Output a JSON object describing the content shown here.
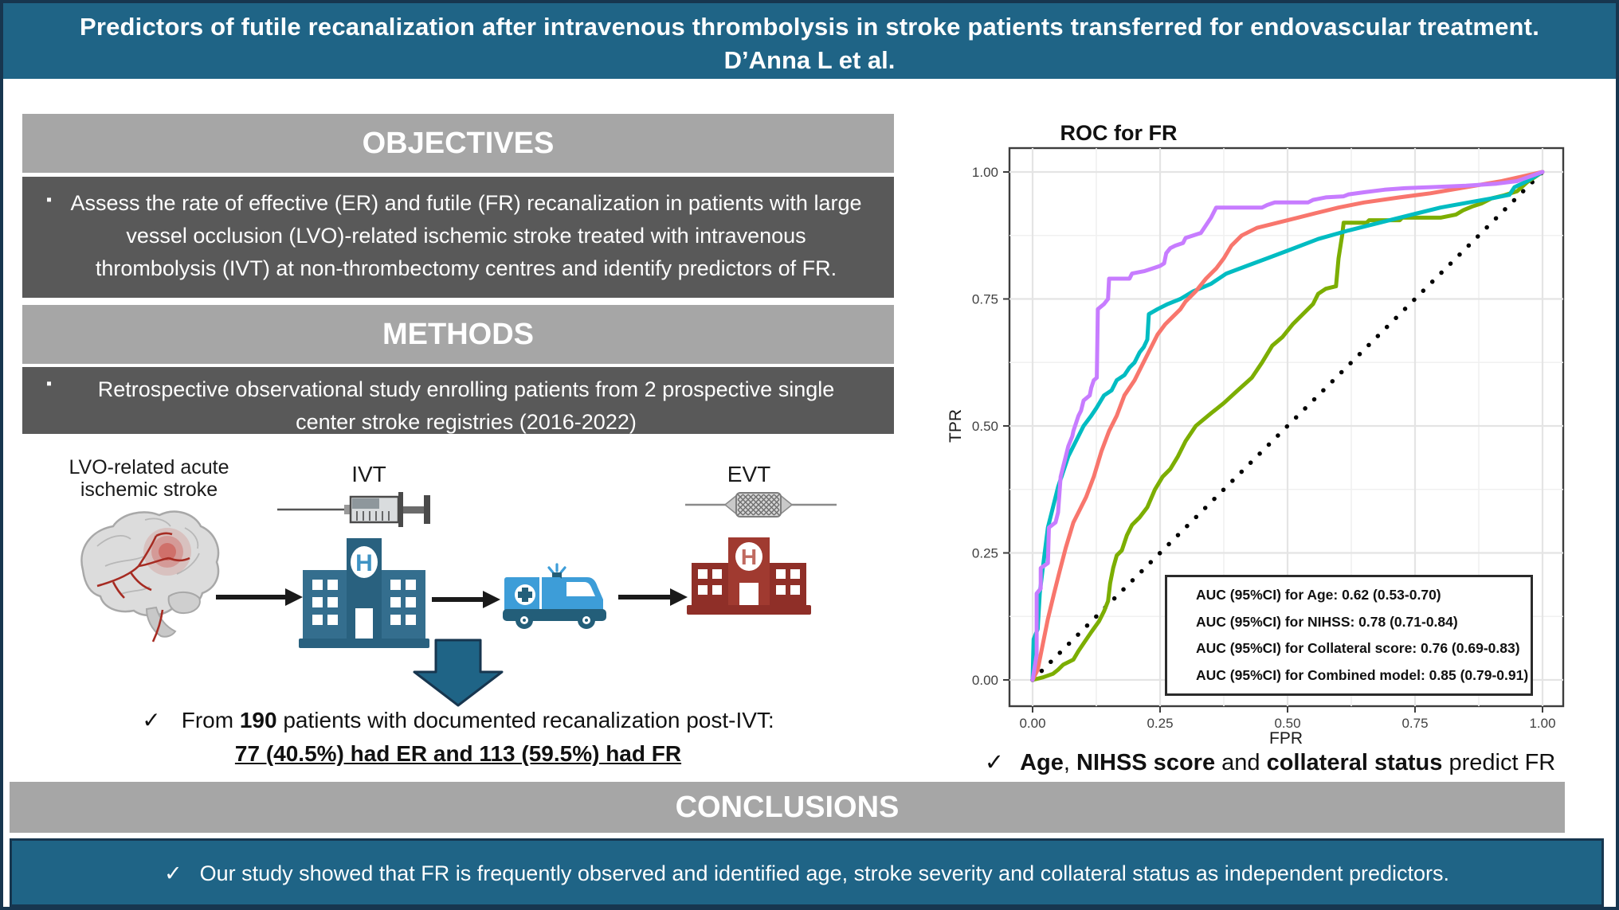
{
  "title": {
    "line1": "Predictors of futile recanalization after intravenous thrombolysis in stroke patients transferred for endovascular treatment.",
    "line2": "D’Anna L et al."
  },
  "objectives": {
    "header": "OBJECTIVES",
    "bullet": "▪",
    "text": "Assess the rate of effective (ER) and futile (FR) recanalization in patients with large vessel occlusion (LVO)-related ischemic stroke treated with intravenous thrombolysis (IVT) at non-thrombectomy centres and identify predictors of FR."
  },
  "methods": {
    "header": "METHODS",
    "bullet": "▪",
    "text": "Retrospective observational study enrolling patients from 2 prospective single center stroke registries (2016-2022)"
  },
  "flow": {
    "brain_label_line1": "LVO-related acute",
    "brain_label_line2": "ischemic stroke",
    "ivt_label": "IVT",
    "evt_label": "EVT",
    "hospital_letter": "H"
  },
  "results": {
    "check": "✓",
    "line1_pre": "From ",
    "line1_bold": "190",
    "line1_post": " patients with documented recanalization post-IVT:",
    "line2": "77 (40.5%) had ER and 113 (59.5%) had FR"
  },
  "finding": {
    "check": "✓",
    "bold1": "Age",
    "sep1": ", ",
    "bold2": "NIHSS score",
    "sep2": " and ",
    "bold3": "collateral status",
    "tail": " predict FR"
  },
  "conclusions": {
    "header": "CONCLUSIONS",
    "check": "✓",
    "text": "Our study showed that FR is frequently observed and identified age, stroke severity and collateral status as independent predictors."
  },
  "colors": {
    "navy_border": "#17364F",
    "teal_bar": "#1F6486",
    "header_gray": "#A6A6A6",
    "body_gray": "#595959",
    "age_green": "#7CAE00",
    "nihss_teal": "#00BCC2",
    "collateral_red": "#F8766D",
    "combined_purple": "#C77CFF"
  },
  "chart_data": {
    "type": "line",
    "title": "ROC for FR",
    "xlabel": "FPR",
    "ylabel": "TPR",
    "xlim": [
      0,
      1
    ],
    "ylim": [
      0,
      1
    ],
    "x_tick_labels": [
      "0.00",
      "0.25",
      "0.50",
      "0.75",
      "1.00"
    ],
    "y_tick_labels": [
      "0.00",
      "0.25",
      "0.50",
      "0.75",
      "1.00"
    ],
    "grid": "major and minor gridlines, white panel, gray border",
    "reference_line": {
      "style": "dotted",
      "from": [
        0,
        0
      ],
      "to": [
        1,
        1
      ],
      "color": "#000000"
    },
    "legend_position": "annotation box inside lower right",
    "annotations": [
      "AUC (95%CI) for Age: 0.62 (0.53-0.70)",
      "AUC (95%CI) for NIHSS: 0.78 (0.71-0.84)",
      "AUC (95%CI) for Collateral score: 0.76 (0.69-0.83)",
      "AUC (95%CI) for Combined model: 0.85 (0.79-0.91)"
    ],
    "series": [
      {
        "name": "Age",
        "color": "#7CAE00",
        "auc": "0.62 (0.53-0.70)",
        "points": [
          [
            0,
            0
          ],
          [
            0.02,
            0.005
          ],
          [
            0.04,
            0.012
          ],
          [
            0.05,
            0.02
          ],
          [
            0.06,
            0.03
          ],
          [
            0.08,
            0.04
          ],
          [
            0.09,
            0.057
          ],
          [
            0.1,
            0.072
          ],
          [
            0.115,
            0.094
          ],
          [
            0.13,
            0.115
          ],
          [
            0.14,
            0.135
          ],
          [
            0.148,
            0.155
          ],
          [
            0.152,
            0.19
          ],
          [
            0.158,
            0.22
          ],
          [
            0.165,
            0.245
          ],
          [
            0.175,
            0.255
          ],
          [
            0.185,
            0.285
          ],
          [
            0.195,
            0.305
          ],
          [
            0.21,
            0.32
          ],
          [
            0.225,
            0.34
          ],
          [
            0.24,
            0.375
          ],
          [
            0.255,
            0.4
          ],
          [
            0.27,
            0.415
          ],
          [
            0.285,
            0.44
          ],
          [
            0.3,
            0.47
          ],
          [
            0.32,
            0.5
          ],
          [
            0.35,
            0.525
          ],
          [
            0.375,
            0.545
          ],
          [
            0.4,
            0.568
          ],
          [
            0.43,
            0.595
          ],
          [
            0.45,
            0.625
          ],
          [
            0.47,
            0.658
          ],
          [
            0.49,
            0.675
          ],
          [
            0.51,
            0.7
          ],
          [
            0.53,
            0.72
          ],
          [
            0.55,
            0.74
          ],
          [
            0.56,
            0.76
          ],
          [
            0.575,
            0.77
          ],
          [
            0.595,
            0.775
          ],
          [
            0.6,
            0.83
          ],
          [
            0.607,
            0.875
          ],
          [
            0.61,
            0.9
          ],
          [
            0.655,
            0.9
          ],
          [
            0.66,
            0.905
          ],
          [
            0.72,
            0.905
          ],
          [
            0.725,
            0.91
          ],
          [
            0.8,
            0.91
          ],
          [
            0.83,
            0.916
          ],
          [
            0.845,
            0.925
          ],
          [
            0.862,
            0.932
          ],
          [
            0.88,
            0.938
          ],
          [
            0.9,
            0.948
          ],
          [
            0.925,
            0.954
          ],
          [
            0.95,
            0.962
          ],
          [
            0.97,
            0.98
          ],
          [
            1,
            1
          ]
        ]
      },
      {
        "name": "NIHSS",
        "color": "#00BCC2",
        "auc": "0.78 (0.71-0.84)",
        "points": [
          [
            0,
            0
          ],
          [
            0.002,
            0.08
          ],
          [
            0.01,
            0.1
          ],
          [
            0.014,
            0.17
          ],
          [
            0.02,
            0.22
          ],
          [
            0.03,
            0.3
          ],
          [
            0.04,
            0.34
          ],
          [
            0.05,
            0.38
          ],
          [
            0.06,
            0.41
          ],
          [
            0.07,
            0.44
          ],
          [
            0.08,
            0.46
          ],
          [
            0.09,
            0.48
          ],
          [
            0.1,
            0.5
          ],
          [
            0.115,
            0.52
          ],
          [
            0.125,
            0.535
          ],
          [
            0.14,
            0.56
          ],
          [
            0.155,
            0.57
          ],
          [
            0.165,
            0.59
          ],
          [
            0.18,
            0.6
          ],
          [
            0.19,
            0.615
          ],
          [
            0.2,
            0.625
          ],
          [
            0.21,
            0.645
          ],
          [
            0.218,
            0.655
          ],
          [
            0.225,
            0.67
          ],
          [
            0.228,
            0.72
          ],
          [
            0.245,
            0.73
          ],
          [
            0.265,
            0.74
          ],
          [
            0.29,
            0.75
          ],
          [
            0.315,
            0.765
          ],
          [
            0.35,
            0.78
          ],
          [
            0.38,
            0.8
          ],
          [
            0.42,
            0.815
          ],
          [
            0.46,
            0.83
          ],
          [
            0.5,
            0.845
          ],
          [
            0.56,
            0.868
          ],
          [
            0.62,
            0.885
          ],
          [
            0.68,
            0.9
          ],
          [
            0.74,
            0.915
          ],
          [
            0.8,
            0.93
          ],
          [
            0.855,
            0.94
          ],
          [
            0.9,
            0.948
          ],
          [
            0.935,
            0.955
          ],
          [
            0.945,
            0.97
          ],
          [
            0.97,
            0.982
          ],
          [
            1,
            1
          ]
        ]
      },
      {
        "name": "Collateral score",
        "color": "#F8766D",
        "auc": "0.76 (0.69-0.83)",
        "points": [
          [
            0,
            0
          ],
          [
            0.01,
            0.02
          ],
          [
            0.02,
            0.07
          ],
          [
            0.03,
            0.12
          ],
          [
            0.042,
            0.17
          ],
          [
            0.052,
            0.21
          ],
          [
            0.065,
            0.26
          ],
          [
            0.08,
            0.31
          ],
          [
            0.09,
            0.33
          ],
          [
            0.105,
            0.36
          ],
          [
            0.12,
            0.4
          ],
          [
            0.135,
            0.45
          ],
          [
            0.15,
            0.49
          ],
          [
            0.165,
            0.52
          ],
          [
            0.18,
            0.56
          ],
          [
            0.2,
            0.59
          ],
          [
            0.215,
            0.62
          ],
          [
            0.23,
            0.65
          ],
          [
            0.245,
            0.68
          ],
          [
            0.26,
            0.7
          ],
          [
            0.275,
            0.715
          ],
          [
            0.29,
            0.73
          ],
          [
            0.3,
            0.745
          ],
          [
            0.32,
            0.765
          ],
          [
            0.34,
            0.79
          ],
          [
            0.36,
            0.81
          ],
          [
            0.375,
            0.83
          ],
          [
            0.39,
            0.855
          ],
          [
            0.41,
            0.875
          ],
          [
            0.44,
            0.89
          ],
          [
            0.48,
            0.9
          ],
          [
            0.52,
            0.91
          ],
          [
            0.56,
            0.92
          ],
          [
            0.6,
            0.93
          ],
          [
            0.65,
            0.94
          ],
          [
            0.72,
            0.95
          ],
          [
            0.78,
            0.958
          ],
          [
            0.85,
            0.97
          ],
          [
            0.92,
            0.982
          ],
          [
            1,
            1
          ]
        ]
      },
      {
        "name": "Combined model",
        "color": "#C77CFF",
        "auc": "0.85 (0.79-0.91)",
        "points": [
          [
            0,
            0
          ],
          [
            0.008,
            0.05
          ],
          [
            0.008,
            0.17
          ],
          [
            0.016,
            0.18
          ],
          [
            0.016,
            0.22
          ],
          [
            0.03,
            0.23
          ],
          [
            0.032,
            0.3
          ],
          [
            0.045,
            0.31
          ],
          [
            0.05,
            0.33
          ],
          [
            0.055,
            0.4
          ],
          [
            0.06,
            0.42
          ],
          [
            0.065,
            0.44
          ],
          [
            0.07,
            0.46
          ],
          [
            0.078,
            0.48
          ],
          [
            0.08,
            0.49
          ],
          [
            0.09,
            0.52
          ],
          [
            0.095,
            0.53
          ],
          [
            0.1,
            0.55
          ],
          [
            0.112,
            0.56
          ],
          [
            0.115,
            0.575
          ],
          [
            0.12,
            0.59
          ],
          [
            0.126,
            0.595
          ],
          [
            0.128,
            0.73
          ],
          [
            0.14,
            0.74
          ],
          [
            0.148,
            0.75
          ],
          [
            0.15,
            0.79
          ],
          [
            0.19,
            0.79
          ],
          [
            0.195,
            0.8
          ],
          [
            0.22,
            0.805
          ],
          [
            0.235,
            0.81
          ],
          [
            0.25,
            0.815
          ],
          [
            0.258,
            0.82
          ],
          [
            0.262,
            0.84
          ],
          [
            0.27,
            0.85
          ],
          [
            0.28,
            0.855
          ],
          [
            0.295,
            0.86
          ],
          [
            0.3,
            0.87
          ],
          [
            0.315,
            0.875
          ],
          [
            0.33,
            0.88
          ],
          [
            0.34,
            0.895
          ],
          [
            0.35,
            0.91
          ],
          [
            0.36,
            0.93
          ],
          [
            0.45,
            0.93
          ],
          [
            0.46,
            0.935
          ],
          [
            0.475,
            0.94
          ],
          [
            0.54,
            0.94
          ],
          [
            0.55,
            0.945
          ],
          [
            0.575,
            0.95
          ],
          [
            0.61,
            0.952
          ],
          [
            0.62,
            0.956
          ],
          [
            0.65,
            0.96
          ],
          [
            0.69,
            0.965
          ],
          [
            0.73,
            0.968
          ],
          [
            0.78,
            0.97
          ],
          [
            0.85,
            0.973
          ],
          [
            0.91,
            0.977
          ],
          [
            0.95,
            0.982
          ],
          [
            1,
            1
          ]
        ]
      }
    ]
  }
}
